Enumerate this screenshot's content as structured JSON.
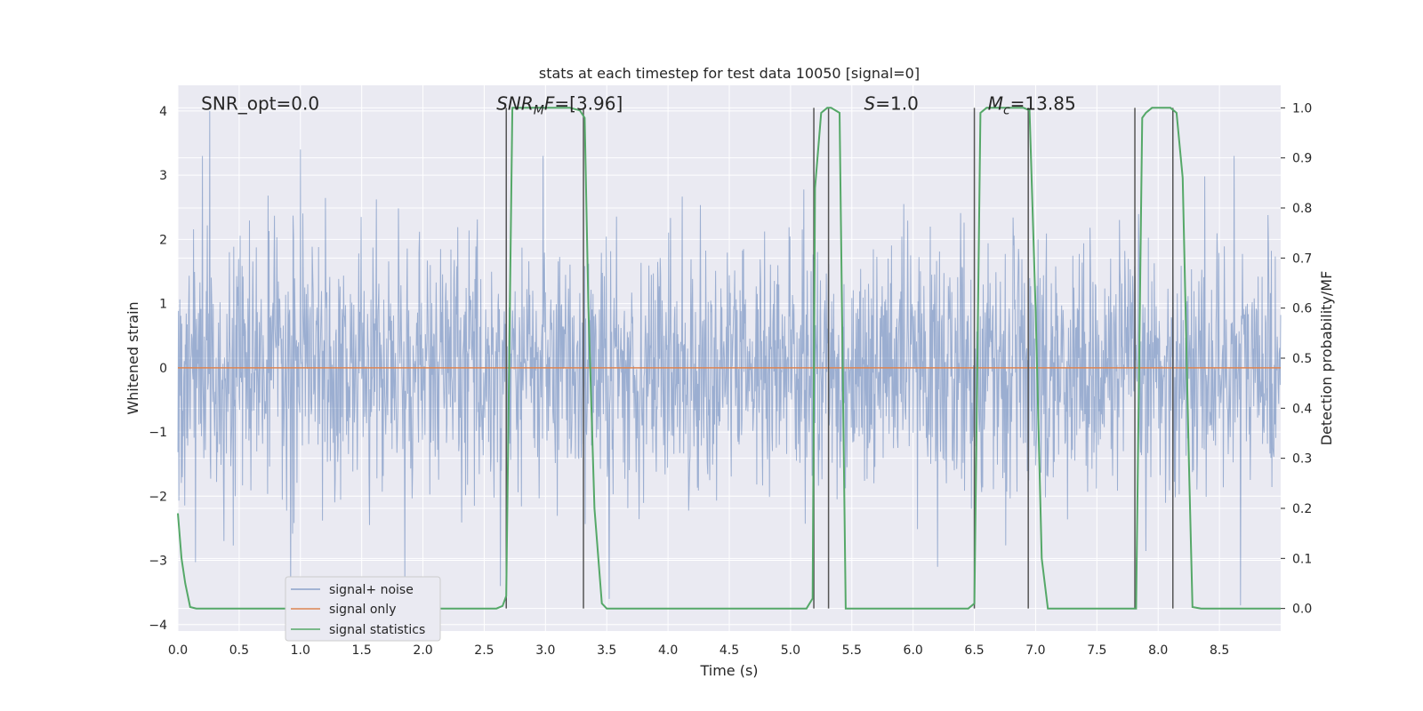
{
  "chart_data": {
    "type": "line",
    "title": "stats at each timestep for test data 10050 [signal=0]",
    "xlabel": "Time (s)",
    "ylabel": "Whitened strain",
    "y2label": "Detection probability/MF",
    "xlim": [
      0.0,
      9.0
    ],
    "ylim": [
      -4.1,
      4.4
    ],
    "y2lim": [
      -0.045,
      1.045
    ],
    "xticks": [
      "0.0",
      "0.5",
      "1.0",
      "1.5",
      "2.0",
      "2.5",
      "3.0",
      "3.5",
      "4.0",
      "4.5",
      "5.0",
      "5.5",
      "6.0",
      "6.5",
      "7.0",
      "7.5",
      "8.0",
      "8.5"
    ],
    "xtick_values": [
      0.0,
      0.5,
      1.0,
      1.5,
      2.0,
      2.5,
      3.0,
      3.5,
      4.0,
      4.5,
      5.0,
      5.5,
      6.0,
      6.5,
      7.0,
      7.5,
      8.0,
      8.5
    ],
    "yticks": [
      "4",
      "3",
      "2",
      "1",
      "0",
      "−1",
      "−2",
      "−3",
      "−4"
    ],
    "ytick_values": [
      4,
      3,
      2,
      1,
      0,
      -1,
      -2,
      -3,
      -4
    ],
    "y2ticks": [
      "1.0",
      "0.9",
      "0.8",
      "0.7",
      "0.6",
      "0.5",
      "0.4",
      "0.3",
      "0.2",
      "0.1",
      "0.0"
    ],
    "y2tick_values": [
      1.0,
      0.9,
      0.8,
      0.7,
      0.6,
      0.5,
      0.4,
      0.3,
      0.2,
      0.1,
      0.0
    ],
    "grid": true,
    "legend_position": "lower-left",
    "annotations": [
      {
        "id": "snr-opt",
        "text": "SNR_opt=0.0",
        "x": 0.19,
        "y": 4.05
      },
      {
        "id": "snr-mf",
        "html": "<tspan font-style='italic'>SNR</tspan><tspan font-style='italic' font-size='14' dy='5'>M</tspan><tspan font-style='italic' dy='-5'>F</tspan><tspan>=[3.96]</tspan>",
        "text": "SNR_MF=[3.96]",
        "x": 2.6,
        "y": 4.05
      },
      {
        "id": "s-value",
        "html": "<tspan font-style='italic'>S</tspan><tspan>=1.0</tspan>",
        "text": "S=1.0",
        "x": 5.6,
        "y": 4.05
      },
      {
        "id": "mc-value",
        "html": "<tspan font-style='italic'>M</tspan><tspan font-style='italic' font-size='14' dy='5'>c</tspan><tspan dy='-5'>=13.85</tspan>",
        "text": "Mc=13.85",
        "x": 6.61,
        "y": 4.05
      }
    ],
    "series": [
      {
        "name": "signal+ noise",
        "color": "#4c72b0",
        "opacity": 0.5,
        "axis": "left",
        "kind": "noise",
        "dt": 0.004,
        "sigma": 1.0,
        "peaks": [
          [
            0.26,
            4.0
          ],
          [
            0.2,
            3.3
          ],
          [
            1.0,
            3.4
          ],
          [
            8.67,
            -3.7
          ],
          [
            2.63,
            -3.4
          ],
          [
            3.52,
            -3.6
          ],
          [
            0.92,
            -3.6
          ],
          [
            1.85,
            -3.3
          ],
          [
            2.98,
            3.3
          ],
          [
            8.62,
            3.3
          ]
        ]
      },
      {
        "name": "signal only",
        "color": "#dd8452",
        "axis": "left",
        "kind": "line",
        "x": [
          0.0,
          9.0
        ],
        "y": [
          0.0,
          0.0
        ]
      },
      {
        "name": "signal statistics",
        "color": "#55a868",
        "axis": "right",
        "kind": "line",
        "x": [
          0.0,
          0.03,
          0.06,
          0.1,
          0.15,
          2.6,
          2.65,
          2.68,
          2.73,
          3.2,
          3.28,
          3.32,
          3.35,
          3.4,
          3.46,
          3.5,
          5.13,
          5.18,
          5.2,
          5.25,
          5.3,
          5.33,
          5.4,
          5.45,
          6.45,
          6.5,
          6.55,
          6.6,
          6.65,
          6.9,
          6.95,
          7.0,
          7.05,
          7.1,
          7.82,
          7.87,
          7.9,
          7.95,
          8.1,
          8.15,
          8.2,
          8.25,
          8.28,
          8.35,
          9.0
        ],
        "y": [
          0.19,
          0.1,
          0.05,
          0.003,
          0.0,
          0.0,
          0.005,
          0.025,
          1.0,
          1.0,
          0.995,
          0.98,
          0.6,
          0.2,
          0.01,
          0.0,
          0.0,
          0.02,
          0.84,
          0.99,
          1.0,
          1.0,
          0.99,
          0.0,
          0.0,
          0.01,
          0.99,
          1.0,
          1.0,
          1.0,
          0.995,
          0.6,
          0.1,
          0.0,
          0.0,
          0.98,
          0.99,
          1.0,
          1.0,
          0.99,
          0.86,
          0.3,
          0.003,
          0.0,
          0.0
        ]
      }
    ],
    "vlines": [
      2.68,
      3.31,
      5.19,
      5.31,
      6.5,
      6.94,
      7.81,
      8.12
    ],
    "vline_range": [
      0.0,
      1.0
    ],
    "vline_color": "#555555",
    "colors": {
      "plot_bg": "#eaeaf2",
      "grid": "#ffffff",
      "text": "#262626",
      "legend_bg": "#eaeaf2",
      "legend_border": "#cccccc"
    }
  }
}
